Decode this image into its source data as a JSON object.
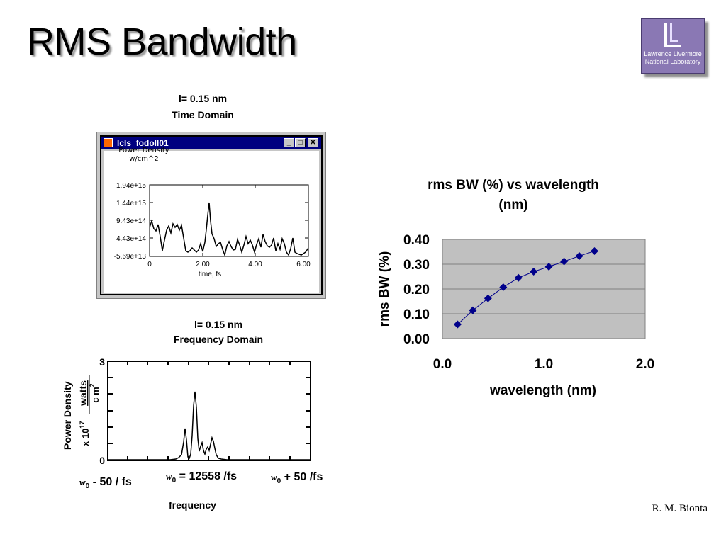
{
  "slide": {
    "title": "RMS Bandwidth",
    "credit": "R. M. Bionta"
  },
  "logo": {
    "line1": "Lawrence Livermore",
    "line2": "National Laboratory"
  },
  "time_domain": {
    "caption_line1": "l= 0.15 nm",
    "caption_line2": "Time Domain",
    "window_title": "lcls_fodoll01",
    "ylabel_line1": "Power Density",
    "ylabel_line2": "w/cm^2",
    "y_ticks": [
      "1.94e+15",
      "1.44e+15",
      "9.43e+14",
      "4.43e+14",
      "-5.69e+13"
    ],
    "x_ticks": [
      "0",
      "2.00",
      "4.00",
      "6.00"
    ],
    "xlabel": "time, fs"
  },
  "freq_domain": {
    "caption_line1": "l= 0.15 nm",
    "caption_line2": "Frequency Domain",
    "ylabel_a": "Power Density",
    "ylabel_b_num": "watts",
    "ylabel_b_den": "c m",
    "ylabel_b_den_sup": "2",
    "ylabel_c": "x 10",
    "ylabel_c_sup": "17",
    "y_ticks": [
      "3",
      "0"
    ],
    "x_left_sym": "w",
    "x_left_sub": "0",
    "x_left_rest": " - 50 / fs",
    "x_mid_sym": "w",
    "x_mid_sub": "0",
    "x_mid_rest": " = 12558 /fs",
    "x_right_sym": "w",
    "x_right_sub": "0",
    "x_right_rest": " + 50 /fs",
    "xlabel": "frequency"
  },
  "chart_data": {
    "type": "scatter",
    "title_line1": "rms BW (%) vs wavelength",
    "title_line2": "(nm)",
    "xlabel": "wavelength (nm)",
    "ylabel": "rms BW (%)",
    "xlim": [
      0,
      2
    ],
    "ylim": [
      0,
      0.4
    ],
    "x_tick_labels": [
      "0.0",
      "1.0",
      "2.0"
    ],
    "y_tick_labels": [
      "0.40",
      "0.30",
      "0.20",
      "0.10",
      "0.00"
    ],
    "series": [
      {
        "x": [
          0.15,
          0.3,
          0.45,
          0.6,
          0.75,
          0.9,
          1.05,
          1.2,
          1.35,
          1.5
        ],
        "y": [
          0.057,
          0.114,
          0.162,
          0.207,
          0.245,
          0.27,
          0.29,
          0.311,
          0.333,
          0.353
        ],
        "color": "#00008b",
        "marker": "diamond"
      }
    ],
    "plot_background": "#c0c0c0",
    "grid": true,
    "legend": "none"
  }
}
